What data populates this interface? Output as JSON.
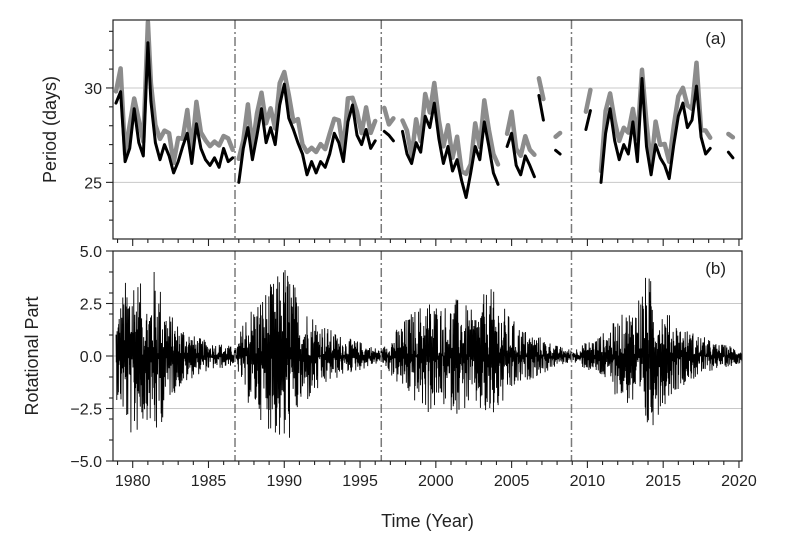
{
  "chart_data": [
    {
      "type": "line",
      "panel_label": "(a)",
      "ylabel": "Period (days)",
      "xlim": [
        1978.7,
        2020.2
      ],
      "ylim": [
        22.0,
        33.6
      ],
      "x_ticks": [
        1980,
        1985,
        1990,
        1995,
        2000,
        2005,
        2010,
        2015,
        2020
      ],
      "y_ticks": [
        25,
        30
      ],
      "y_tick_labels": [
        "25",
        "30"
      ],
      "grid": "horizontal",
      "vlines": [
        1986.75,
        1996.4,
        2008.95
      ],
      "colors": {
        "upper_band": "#8c8c8c",
        "center": "#000000",
        "grid": "#c8c8c8",
        "vline": "#7a7a7a"
      },
      "series": [
        {
          "segments": [
            {
              "x": [
                1978.9,
                1979.2,
                1979.5,
                1979.8,
                1980.1,
                1980.4,
                1980.7,
                1981.0,
                1981.2,
                1981.5,
                1981.8,
                1982.1,
                1982.4,
                1982.7,
                1983.0,
                1983.3,
                1983.6,
                1983.9,
                1984.2,
                1984.5,
                1984.8,
                1985.1,
                1985.4,
                1985.7,
                1986.0,
                1986.3,
                1986.6
              ],
              "y": [
                29.2,
                29.8,
                26.1,
                26.8,
                28.9,
                27.1,
                26.4,
                32.4,
                29.3,
                27.1,
                26.2,
                27.0,
                26.4,
                25.5,
                26.1,
                26.9,
                27.6,
                26.0,
                28.1,
                26.8,
                26.2,
                25.9,
                26.3,
                25.8,
                26.8,
                26.1,
                26.3
              ]
            },
            {
              "x": [
                1987.0,
                1987.3,
                1987.6,
                1987.9,
                1988.2,
                1988.5,
                1988.8,
                1989.1,
                1989.4,
                1989.7,
                1990.0,
                1990.3,
                1990.6,
                1990.9,
                1991.2,
                1991.5,
                1991.8,
                1992.1,
                1992.4,
                1992.7,
                1993.0,
                1993.3,
                1993.6,
                1993.9,
                1994.2,
                1994.5,
                1994.8,
                1995.1,
                1995.4,
                1995.7,
                1996.0
              ],
              "y": [
                25.0,
                26.8,
                27.9,
                26.2,
                27.5,
                28.9,
                27.1,
                27.9,
                27.0,
                29.1,
                30.2,
                28.4,
                27.8,
                27.1,
                26.5,
                25.4,
                26.1,
                25.5,
                26.1,
                25.8,
                26.5,
                27.6,
                27.1,
                26.1,
                28.2,
                29.1,
                27.5,
                27.0,
                27.8,
                26.8,
                27.2
              ]
            },
            {
              "x": [
                1996.6,
                1996.9,
                1997.2
              ],
              "y": [
                27.7,
                27.5,
                27.2
              ]
            },
            {
              "x": [
                1997.8,
                1998.1,
                1998.4,
                1998.7,
                1999.0,
                1999.3,
                1999.6,
                1999.9,
                2000.2,
                2000.5,
                2000.8,
                2001.1,
                2001.4,
                2001.7,
                2002.0,
                2002.3,
                2002.6,
                2002.9,
                2003.2,
                2003.5,
                2003.8,
                2004.1
              ],
              "y": [
                27.7,
                26.5,
                26.0,
                27.1,
                26.6,
                28.5,
                27.9,
                29.2,
                27.3,
                26.0,
                26.9,
                25.6,
                26.2,
                25.1,
                24.2,
                25.5,
                26.9,
                26.2,
                28.2,
                26.9,
                25.5,
                24.9
              ]
            },
            {
              "x": [
                2004.7,
                2005.0,
                2005.3,
                2005.6,
                2005.9,
                2006.2,
                2006.5
              ],
              "y": [
                26.9,
                27.6,
                25.9,
                25.4,
                26.4,
                25.9,
                25.3
              ]
            },
            {
              "x": [
                2006.8,
                2007.1
              ],
              "y": [
                29.6,
                28.3
              ]
            },
            {
              "x": [
                2007.9,
                2008.2
              ],
              "y": [
                26.7,
                26.5
              ]
            },
            {
              "x": [
                2009.9,
                2010.2
              ],
              "y": [
                27.8,
                28.8
              ]
            },
            {
              "x": [
                2010.9,
                2011.2,
                2011.5,
                2011.8,
                2012.1,
                2012.4,
                2012.7,
                2013.0,
                2013.3,
                2013.6,
                2013.9,
                2014.2,
                2014.5,
                2014.8,
                2015.1,
                2015.4,
                2015.7,
                2016.0,
                2016.3,
                2016.6,
                2016.9,
                2017.2,
                2017.5,
                2017.8,
                2018.1
              ],
              "y": [
                25.0,
                27.6,
                28.9,
                27.2,
                26.2,
                27.0,
                26.5,
                28.2,
                26.1,
                30.5,
                26.9,
                25.4,
                27.0,
                26.3,
                25.9,
                25.2,
                27.0,
                28.5,
                29.2,
                27.9,
                28.3,
                30.1,
                27.4,
                26.5,
                26.8
              ]
            },
            {
              "x": [
                2019.3,
                2019.6
              ],
              "y": [
                26.6,
                26.3
              ]
            }
          ]
        }
      ]
    },
    {
      "type": "line",
      "panel_label": "(b)",
      "xlabel": "Time (Year)",
      "ylabel": "Rotational Part",
      "xlim": [
        1978.7,
        2020.2
      ],
      "ylim": [
        -5.0,
        5.0
      ],
      "x_ticks": [
        1980,
        1985,
        1990,
        1995,
        2000,
        2005,
        2010,
        2015,
        2020
      ],
      "x_tick_labels": [
        "1980",
        "1985",
        "1990",
        "1995",
        "2000",
        "2005",
        "2010",
        "2015",
        "2020"
      ],
      "y_ticks": [
        -5.0,
        -2.5,
        0.0,
        2.5,
        5.0
      ],
      "y_tick_labels": [
        "−5.0",
        "−2.5",
        "0.0",
        "2.5",
        "5.0"
      ],
      "grid": "horizontal",
      "vlines": [
        1986.75,
        1996.4,
        2008.95
      ],
      "colors": {
        "signal": "#000000",
        "grid": "#c8c8c8",
        "vline": "#7a7a7a"
      },
      "envelope": {
        "x": [
          1978.9,
          1979.5,
          1980.0,
          1980.5,
          1981.0,
          1981.5,
          1982.0,
          1982.5,
          1983.0,
          1983.5,
          1984.0,
          1985.0,
          1986.0,
          1986.8,
          1987.5,
          1988.5,
          1989.5,
          1990.0,
          1990.5,
          1991.0,
          1992.0,
          1993.0,
          1994.0,
          1995.0,
          1996.4,
          1997.5,
          1998.5,
          1999.5,
          2000.5,
          2001.5,
          2002.5,
          2003.5,
          2004.0,
          2005.0,
          2006.0,
          2007.0,
          2008.0,
          2009.0,
          2010.0,
          2011.0,
          2012.0,
          2013.0,
          2014.0,
          2014.5,
          2015.5,
          2016.5,
          2017.5,
          2018.5,
          2019.5,
          2020.2
        ],
        "upper": [
          2.0,
          3.6,
          4.6,
          3.5,
          2.8,
          4.5,
          2.9,
          2.0,
          1.6,
          1.5,
          1.0,
          0.7,
          0.6,
          0.4,
          2.2,
          3.0,
          3.8,
          4.6,
          4.0,
          2.6,
          2.0,
          1.3,
          0.9,
          0.7,
          0.3,
          1.4,
          2.2,
          2.8,
          2.5,
          2.8,
          2.1,
          3.4,
          2.9,
          1.8,
          1.2,
          0.9,
          0.5,
          0.3,
          0.7,
          1.1,
          1.8,
          2.5,
          4.1,
          3.0,
          1.9,
          1.3,
          1.0,
          0.6,
          0.5,
          0.3
        ],
        "lower": [
          -2.0,
          -3.3,
          -4.2,
          -3.5,
          -3.0,
          -4.3,
          -3.0,
          -2.0,
          -1.6,
          -1.4,
          -1.0,
          -0.7,
          -0.6,
          -0.4,
          -2.2,
          -3.1,
          -4.0,
          -4.8,
          -3.8,
          -2.6,
          -2.0,
          -1.3,
          -0.9,
          -0.7,
          -0.3,
          -1.4,
          -2.2,
          -2.8,
          -2.5,
          -2.8,
          -2.4,
          -3.5,
          -2.9,
          -1.8,
          -1.2,
          -0.9,
          -0.5,
          -0.3,
          -0.7,
          -1.1,
          -2.0,
          -2.6,
          -4.0,
          -3.0,
          -1.9,
          -1.3,
          -1.0,
          -0.6,
          -0.5,
          -0.3
        ]
      }
    }
  ]
}
